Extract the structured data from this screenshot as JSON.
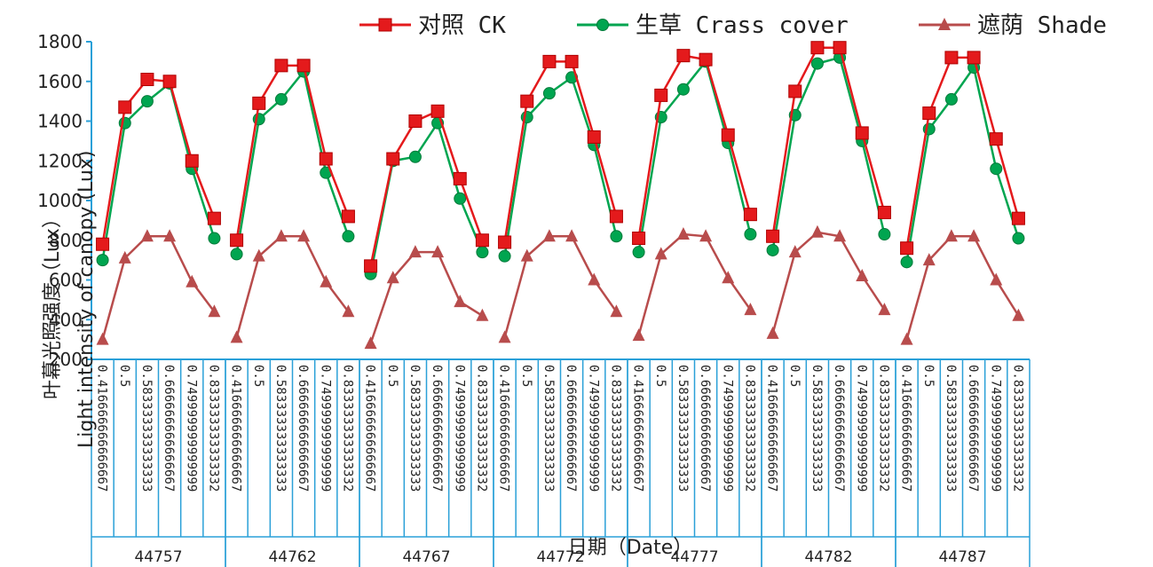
{
  "chart_data": {
    "type": "line",
    "title": "",
    "ylabel_lines": [
      "叶幕光照强度（Lux）",
      "Light intensity of canopy (Lux)"
    ],
    "xlabel": "日期（Date）",
    "ylim": [
      200,
      1800
    ],
    "y_ticks": [
      200,
      400,
      600,
      800,
      1000,
      1200,
      1400,
      1600,
      1800
    ],
    "y_tick_labels": [
      "200",
      "400",
      "600",
      "800",
      "1000",
      "1200",
      "1400",
      "1600",
      "1800"
    ],
    "grid": false,
    "legend_position": "top",
    "groups": [
      "44757",
      "44762",
      "44767",
      "44772",
      "44777",
      "44782",
      "44787"
    ],
    "categories": [
      "0.416666666666667",
      "0.5",
      "0.583333333333333",
      "0.666666666666667",
      "0.749999999999999",
      "0.833333333333332"
    ],
    "series": [
      {
        "name": "对照   CK",
        "color": "#e41a1c",
        "marker_fill": "#e41a1c",
        "marker": "square",
        "values": [
          [
            780,
            1470,
            1610,
            1600,
            1200,
            910
          ],
          [
            800,
            1490,
            1680,
            1680,
            1210,
            920
          ],
          [
            670,
            1210,
            1400,
            1450,
            1110,
            800
          ],
          [
            790,
            1500,
            1700,
            1700,
            1320,
            920
          ],
          [
            810,
            1530,
            1730,
            1710,
            1330,
            930
          ],
          [
            820,
            1550,
            1770,
            1770,
            1340,
            940
          ],
          [
            760,
            1440,
            1720,
            1720,
            1310,
            910
          ]
        ]
      },
      {
        "name": "生草  Crass cover",
        "color": "#00a550",
        "marker_fill": "#00a550",
        "marker": "circle",
        "values": [
          [
            700,
            1390,
            1500,
            1590,
            1160,
            810
          ],
          [
            730,
            1410,
            1510,
            1650,
            1140,
            820
          ],
          [
            630,
            1200,
            1220,
            1390,
            1010,
            740
          ],
          [
            720,
            1420,
            1540,
            1620,
            1280,
            820
          ],
          [
            740,
            1420,
            1560,
            1700,
            1290,
            830
          ],
          [
            750,
            1430,
            1690,
            1720,
            1300,
            830
          ],
          [
            690,
            1360,
            1510,
            1670,
            1160,
            810
          ]
        ]
      },
      {
        "name": "遮荫   Shade",
        "color": "#b84c4c",
        "marker_fill": "#b84c4c",
        "marker": "triangle",
        "values": [
          [
            300,
            710,
            820,
            820,
            590,
            440
          ],
          [
            310,
            720,
            820,
            820,
            590,
            440
          ],
          [
            280,
            610,
            740,
            740,
            490,
            420
          ],
          [
            310,
            720,
            820,
            820,
            600,
            440
          ],
          [
            320,
            730,
            830,
            820,
            610,
            450
          ],
          [
            330,
            740,
            840,
            820,
            620,
            450
          ],
          [
            300,
            700,
            820,
            820,
            600,
            420
          ]
        ]
      }
    ]
  }
}
